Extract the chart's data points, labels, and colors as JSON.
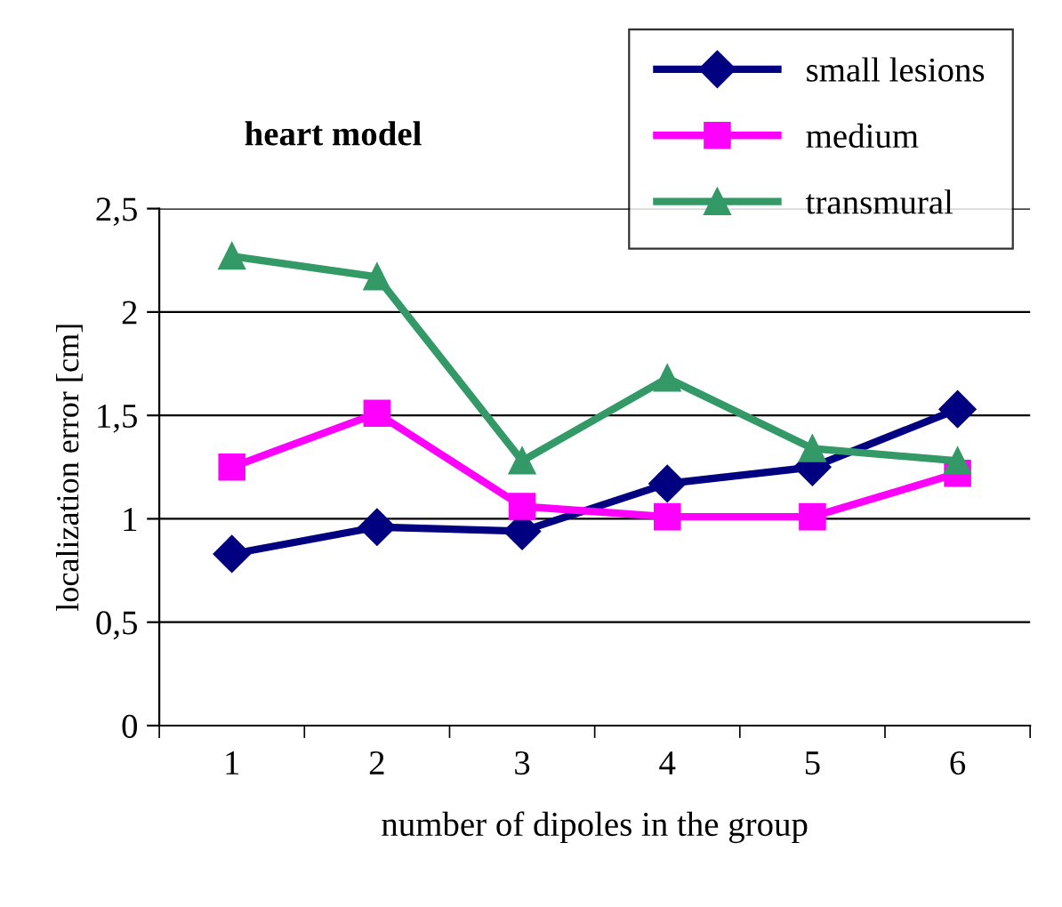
{
  "chart_data": {
    "type": "line",
    "title": "heart model",
    "xlabel": "number of dipoles in the group",
    "ylabel": "localization error [cm]",
    "categories": [
      "1",
      "2",
      "3",
      "4",
      "5",
      "6"
    ],
    "series": [
      {
        "name": "small lesions",
        "color": "#000080",
        "marker": "diamond",
        "values": [
          0.83,
          0.96,
          0.94,
          1.17,
          1.25,
          1.53
        ]
      },
      {
        "name": "medium",
        "color": "#ff00ff",
        "marker": "square",
        "values": [
          1.25,
          1.51,
          1.06,
          1.01,
          1.01,
          1.22
        ]
      },
      {
        "name": "transmural",
        "color": "#339966",
        "marker": "triangle",
        "values": [
          2.27,
          2.17,
          1.28,
          1.68,
          1.34,
          1.28
        ]
      }
    ],
    "ylim": [
      0,
      2.5
    ],
    "yticks": [
      0,
      {
        "value": 0.5,
        "label": "0,5"
      },
      1,
      {
        "value": 1.5,
        "label": "1,5"
      },
      2,
      {
        "value": 2.5,
        "label": "2,5"
      }
    ],
    "grid": "y",
    "legend": "top right",
    "line_style": "solid"
  }
}
